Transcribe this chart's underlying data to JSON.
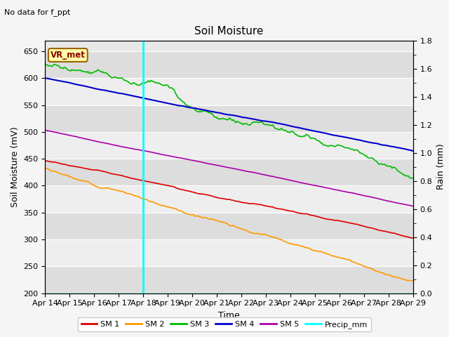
{
  "title": "Soil Moisture",
  "subtitle": "No data for f_ppt",
  "xlabel": "Time",
  "ylabel_left": "Soil Moisture (mV)",
  "ylabel_right": "Rain (mm)",
  "vr_met_label": "VR_met",
  "ylim_left": [
    200,
    670
  ],
  "ylim_right": [
    0.0,
    1.8
  ],
  "yticks_left": [
    200,
    250,
    300,
    350,
    400,
    450,
    500,
    550,
    600,
    650
  ],
  "yticks_right": [
    0.0,
    0.2,
    0.4,
    0.6,
    0.8,
    1.0,
    1.2,
    1.4,
    1.6,
    1.8
  ],
  "x_tick_labels": [
    "Apr 14",
    "Apr 15",
    "Apr 16",
    "Apr 17",
    "Apr 18",
    "Apr 19",
    "Apr 20",
    "Apr 21",
    "Apr 22",
    "Apr 23",
    "Apr 24",
    "Apr 25",
    "Apr 26",
    "Apr 27",
    "Apr 28",
    "Apr 29"
  ],
  "vline_x": 4.0,
  "vline_color": "cyan",
  "bg_color": "#e8e8e8",
  "fig_color": "#f5f5f5",
  "sm1_color": "#dd0000",
  "sm2_color": "#ff9900",
  "sm3_color": "#00bb00",
  "sm4_color": "#0000cc",
  "sm5_color": "#aa00aa",
  "precip_color": "cyan",
  "band_color_light": "#eeeeee",
  "band_color_dark": "#dddddd"
}
